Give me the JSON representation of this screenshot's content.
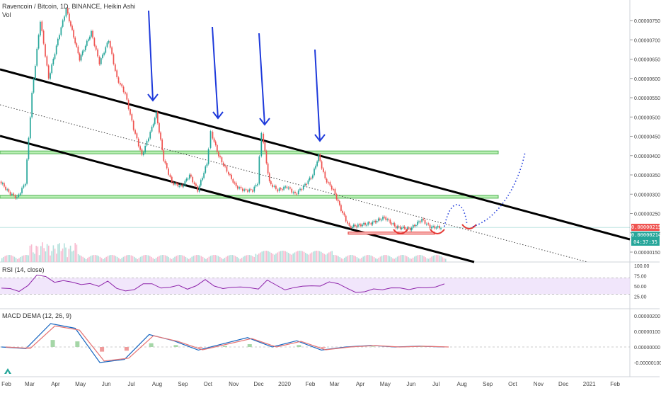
{
  "header": {
    "symbol_line": "Ravencoin / Bitcoin, 1D, BINANCE, Heikin Ashi",
    "volume_label": "Vol"
  },
  "rsi_panel": {
    "label": "RSI (14, close)",
    "ticks": [
      "100.00",
      "75.00",
      "50.00",
      "25.00"
    ]
  },
  "macd_panel": {
    "label": "MACD DEMA (12, 26, 9)",
    "ticks": [
      "0.00000200",
      "0.00000100",
      "0.00000000",
      "-0.00000100"
    ]
  },
  "price_axis": {
    "ticks": [
      "0.00000750",
      "0.00000700",
      "0.00000650",
      "0.00000600",
      "0.00000550",
      "0.00000500",
      "0.00000450",
      "0.00000400",
      "0.00000350",
      "0.00000300",
      "0.00000250",
      "0.00000200",
      "0.00000150"
    ],
    "tags": [
      {
        "text": "0.00000215",
        "color": "#ef5350"
      },
      {
        "text": "0.00000214",
        "color": "#26a69a"
      },
      {
        "text": "04:37:35",
        "color": "#26a69a"
      }
    ]
  },
  "time_axis": {
    "labels": [
      "Feb",
      "Mar",
      "Apr",
      "May",
      "Jun",
      "Jul",
      "Aug",
      "Sep",
      "Oct",
      "Nov",
      "Dec",
      "2020",
      "Feb",
      "Mar",
      "Apr",
      "May",
      "Jun",
      "Jul",
      "Aug",
      "Sep",
      "Oct",
      "Nov",
      "Dec",
      "2021",
      "Feb"
    ]
  },
  "chart_data": {
    "type": "candlestick",
    "title": "Ravencoin / Bitcoin, 1D, BINANCE, Heikin Ashi",
    "price_range": [
      1.25e-06,
      7.8e-06
    ],
    "price_series": [
      {
        "date": "2019-01-25",
        "close": 3.35e-06
      },
      {
        "date": "2019-02-05",
        "close": 3.05e-06
      },
      {
        "date": "2019-02-15",
        "close": 2.9e-06
      },
      {
        "date": "2019-02-25",
        "close": 3.3e-06
      },
      {
        "date": "2019-03-05",
        "close": 5.6e-06
      },
      {
        "date": "2019-03-15",
        "close": 7.5e-06
      },
      {
        "date": "2019-03-25",
        "close": 6e-06
      },
      {
        "date": "2019-04-05",
        "close": 7e-06
      },
      {
        "date": "2019-04-15",
        "close": 7.8e-06
      },
      {
        "date": "2019-05-01",
        "close": 6.5e-06
      },
      {
        "date": "2019-05-15",
        "close": 7.2e-06
      },
      {
        "date": "2019-05-25",
        "close": 6.4e-06
      },
      {
        "date": "2019-06-05",
        "close": 7e-06
      },
      {
        "date": "2019-06-15",
        "close": 6e-06
      },
      {
        "date": "2019-06-25",
        "close": 5.6e-06
      },
      {
        "date": "2019-07-05",
        "close": 4.7e-06
      },
      {
        "date": "2019-07-15",
        "close": 4e-06
      },
      {
        "date": "2019-07-25",
        "close": 4.6e-06
      },
      {
        "date": "2019-08-01",
        "close": 5.1e-06
      },
      {
        "date": "2019-08-10",
        "close": 3.9e-06
      },
      {
        "date": "2019-08-20",
        "close": 3.3e-06
      },
      {
        "date": "2019-09-01",
        "close": 3.2e-06
      },
      {
        "date": "2019-09-10",
        "close": 3.5e-06
      },
      {
        "date": "2019-09-20",
        "close": 3.1e-06
      },
      {
        "date": "2019-10-01",
        "close": 3.8e-06
      },
      {
        "date": "2019-10-06",
        "close": 4.6e-06
      },
      {
        "date": "2019-10-15",
        "close": 4e-06
      },
      {
        "date": "2019-10-25",
        "close": 3.6e-06
      },
      {
        "date": "2019-11-05",
        "close": 3.2e-06
      },
      {
        "date": "2019-11-15",
        "close": 3.1e-06
      },
      {
        "date": "2019-11-25",
        "close": 3.1e-06
      },
      {
        "date": "2019-12-01",
        "close": 3.3e-06
      },
      {
        "date": "2019-12-06",
        "close": 4.6e-06
      },
      {
        "date": "2019-12-15",
        "close": 3.3e-06
      },
      {
        "date": "2019-12-25",
        "close": 3.1e-06
      },
      {
        "date": "2020-01-05",
        "close": 3.2e-06
      },
      {
        "date": "2020-01-15",
        "close": 3e-06
      },
      {
        "date": "2020-01-25",
        "close": 3.2e-06
      },
      {
        "date": "2020-02-05",
        "close": 3.5e-06
      },
      {
        "date": "2020-02-12",
        "close": 4e-06
      },
      {
        "date": "2020-02-20",
        "close": 3.4e-06
      },
      {
        "date": "2020-03-01",
        "close": 3.1e-06
      },
      {
        "date": "2020-03-10",
        "close": 2.6e-06
      },
      {
        "date": "2020-03-20",
        "close": 2.15e-06
      },
      {
        "date": "2020-04-01",
        "close": 2.2e-06
      },
      {
        "date": "2020-04-15",
        "close": 2.25e-06
      },
      {
        "date": "2020-05-01",
        "close": 2.4e-06
      },
      {
        "date": "2020-05-15",
        "close": 2.15e-06
      },
      {
        "date": "2020-06-01",
        "close": 2.1e-06
      },
      {
        "date": "2020-06-15",
        "close": 2.35e-06
      },
      {
        "date": "2020-06-25",
        "close": 2.15e-06
      },
      {
        "date": "2020-07-08",
        "close": 2.14e-06
      }
    ],
    "rsi": [
      45,
      40,
      38,
      55,
      75,
      70,
      62,
      66,
      56,
      52,
      60,
      50,
      58,
      45,
      42,
      40,
      52,
      58,
      48,
      44,
      50,
      46,
      52,
      62,
      50,
      48,
      46,
      44,
      48,
      46,
      62,
      50,
      44,
      48,
      46,
      50,
      54,
      60,
      52,
      46,
      38,
      34,
      40,
      44,
      48,
      42,
      40,
      50,
      46,
      44,
      56
    ],
    "macd_levels": [
      0.0,
      -1e-07,
      1.5e-06,
      1.2e-06,
      -1e-06,
      -8e-07,
      8e-07,
      4e-07,
      -2e-07,
      2e-07,
      6e-07,
      0.0,
      4e-07,
      -2e-07,
      0.0,
      1e-07,
      0.0,
      5e-08,
      0.0
    ],
    "resistance_zones": [
      [
        4.05e-06,
        4.12e-06
      ],
      [
        2.9e-06,
        2.97e-06
      ]
    ]
  }
}
